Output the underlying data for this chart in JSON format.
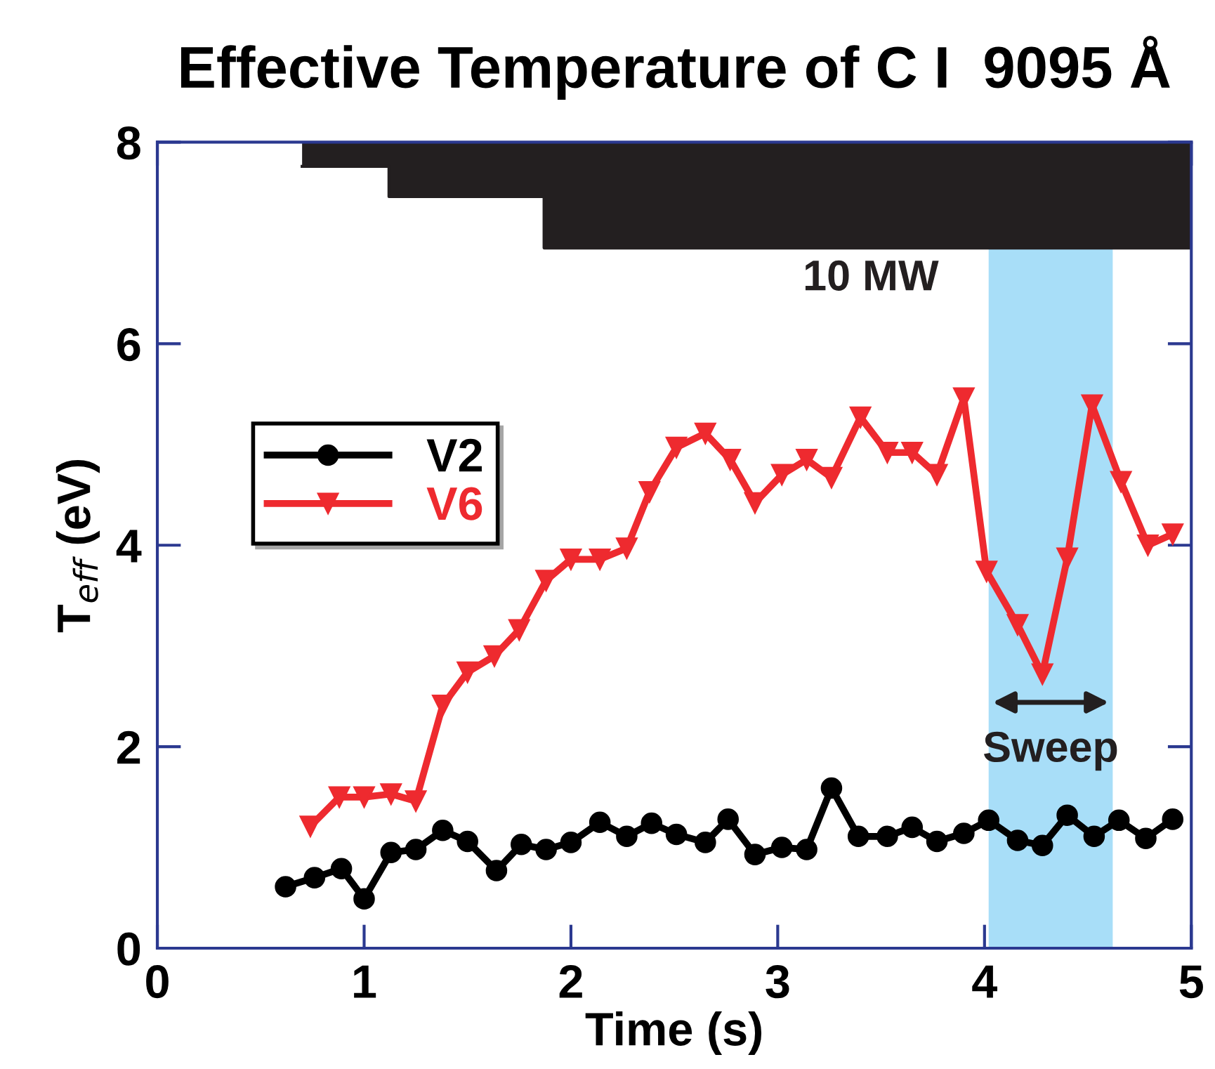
{
  "chart_data": {
    "type": "line",
    "title": "Effective Temperature of C I  9095 Å",
    "xlabel": "Time (s)",
    "ylabel": "T$_{eff}$ (eV)",
    "xlim": [
      0,
      5
    ],
    "xticks": [
      0,
      1,
      2,
      3,
      4,
      5
    ],
    "ylim": [
      0,
      8
    ],
    "yticks": [
      0,
      2,
      4,
      6,
      8
    ],
    "grid": false,
    "legend": "top left",
    "series": [
      {
        "type": "step",
        "color": "#231f20",
        "x": [
          0.7,
          1.12,
          1.87,
          5
        ],
        "values": [
          7.76,
          7.46,
          6.95,
          6.95
        ],
        "marker": "none"
      },
      {
        "name": "V2",
        "color": "#000000",
        "marker": "circle",
        "x": [
          0.62,
          0.76,
          0.89,
          1.0,
          1.13,
          1.25,
          1.38,
          1.5,
          1.64,
          1.76,
          1.88,
          2.0,
          2.14,
          2.27,
          2.39,
          2.51,
          2.65,
          2.76,
          2.89,
          3.02,
          3.14,
          3.26,
          3.39,
          3.53,
          3.65,
          3.77,
          3.9,
          4.02,
          4.16,
          4.28,
          4.4,
          4.53,
          4.65,
          4.78,
          4.91
        ],
        "values": [
          0.61,
          0.7,
          0.79,
          0.49,
          0.95,
          0.98,
          1.17,
          1.06,
          0.77,
          1.03,
          0.98,
          1.05,
          1.25,
          1.11,
          1.24,
          1.13,
          1.05,
          1.28,
          0.93,
          1.0,
          0.98,
          1.59,
          1.11,
          1.11,
          1.2,
          1.06,
          1.14,
          1.27,
          1.07,
          1.02,
          1.32,
          1.11,
          1.27,
          1.09,
          1.28
        ]
      },
      {
        "name": "V6",
        "color": "#ee2a2f",
        "marker": "triangle",
        "x": [
          0.74,
          0.88,
          1.0,
          1.13,
          1.25,
          1.38,
          1.5,
          1.63,
          1.75,
          1.88,
          2.0,
          2.14,
          2.27,
          2.38,
          2.51,
          2.65,
          2.77,
          2.89,
          3.02,
          3.14,
          3.26,
          3.4,
          3.53,
          3.65,
          3.77,
          3.9,
          4.01,
          4.16,
          4.28,
          4.4,
          4.52,
          4.66,
          4.79,
          4.91
        ],
        "values": [
          1.21,
          1.5,
          1.5,
          1.53,
          1.46,
          2.41,
          2.74,
          2.9,
          3.16,
          3.65,
          3.86,
          3.86,
          3.97,
          4.53,
          4.97,
          5.11,
          4.85,
          4.42,
          4.7,
          4.85,
          4.67,
          5.27,
          4.92,
          4.92,
          4.7,
          5.46,
          3.74,
          3.21,
          2.72,
          3.87,
          5.39,
          4.63,
          4.0,
          4.11
        ]
      }
    ],
    "bands": [
      {
        "axis": "x",
        "from": 4.02,
        "to": 4.62,
        "label": "Sweep",
        "color": "#a8def8"
      }
    ],
    "annotations": [
      "10 MW"
    ]
  }
}
